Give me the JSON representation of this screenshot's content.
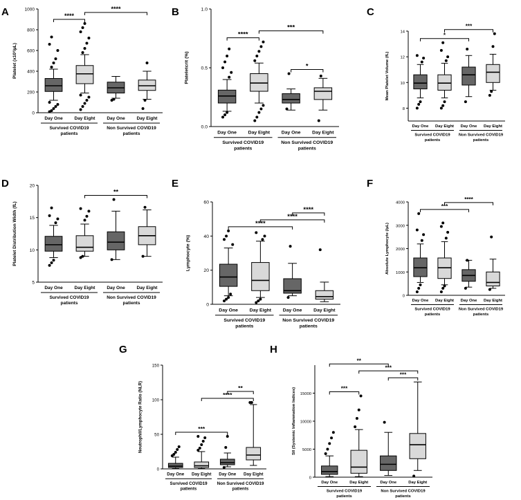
{
  "colors": {
    "dark": "#666666",
    "light": "#d9d9d9",
    "ink": "#000000"
  },
  "chart_data": [
    {
      "panel": "A",
      "type": "box",
      "ylabel": "Platelet (x10³/µL)",
      "ylim": [
        0,
        1000
      ],
      "yticks": [
        0,
        200,
        400,
        600,
        800,
        1000
      ],
      "xticks": [
        "Day One",
        "Day Eight",
        "Day One",
        "Day Eight"
      ],
      "groups": [
        "Survived COVID19 patients",
        "Non Survived COVID19 patients"
      ],
      "boxes": [
        {
          "min": 120,
          "q1": 205,
          "median": 260,
          "q3": 330,
          "max": 420,
          "outliers": [
            10,
            20,
            40,
            60,
            80,
            100,
            440,
            480,
            520,
            600,
            660,
            730
          ],
          "fill": "dark"
        },
        {
          "min": 190,
          "q1": 280,
          "median": 375,
          "q3": 455,
          "max": 560,
          "outliers": [
            30,
            60,
            90,
            120,
            150,
            170,
            580,
            620,
            670,
            720,
            780,
            820,
            860
          ],
          "fill": "light"
        },
        {
          "min": 140,
          "q1": 190,
          "median": 240,
          "q3": 295,
          "max": 350,
          "outliers": [
            120,
            130
          ],
          "fill": "dark"
        },
        {
          "min": 130,
          "q1": 215,
          "median": 260,
          "q3": 315,
          "max": 400,
          "outliers": [
            40,
            120,
            480
          ],
          "fill": "light"
        }
      ],
      "brackets": [
        {
          "from": 0,
          "to": 1,
          "label": "****"
        },
        {
          "from": 1,
          "to": 3,
          "label": "****"
        }
      ]
    },
    {
      "panel": "B",
      "type": "box",
      "ylabel": "Plateletcrit (%)",
      "ylim": [
        0,
        1
      ],
      "yticks": [
        "0.0",
        "0.5",
        "1.0"
      ],
      "xticks": [
        "Day One",
        "Day Eight",
        "Day One",
        "Day Eight"
      ],
      "groups": [
        "Survived COVID19 patients",
        "Non Survived COVID19 patients"
      ],
      "boxes": [
        {
          "min": 0.13,
          "q1": 0.2,
          "median": 0.26,
          "q3": 0.31,
          "max": 0.4,
          "outliers": [
            0.08,
            0.1,
            0.12,
            0.42,
            0.46,
            0.5,
            0.55,
            0.6,
            0.66
          ],
          "fill": "dark"
        },
        {
          "min": 0.2,
          "q1": 0.3,
          "median": 0.37,
          "q3": 0.45,
          "max": 0.54,
          "outliers": [
            0.05,
            0.08,
            0.12,
            0.15,
            0.18,
            0.56,
            0.6,
            0.64,
            0.68,
            0.72
          ],
          "fill": "light"
        },
        {
          "min": 0.14,
          "q1": 0.2,
          "median": 0.23,
          "q3": 0.28,
          "max": 0.32,
          "outliers": [
            0.15,
            0.45
          ],
          "fill": "dark"
        },
        {
          "min": 0.14,
          "q1": 0.23,
          "median": 0.3,
          "q3": 0.33,
          "max": 0.41,
          "outliers": [
            0.05,
            0.43
          ],
          "fill": "light"
        }
      ],
      "brackets": [
        {
          "from": 0,
          "to": 1,
          "label": "****"
        },
        {
          "from": 2,
          "to": 3,
          "label": "*"
        },
        {
          "from": 1,
          "to": 3,
          "label": "***"
        }
      ]
    },
    {
      "panel": "C",
      "type": "box",
      "ylabel": "Mean Platelet Volume (fL)",
      "ylim": [
        7,
        14
      ],
      "yticks": [
        8,
        10,
        12,
        14
      ],
      "xticks": [
        "Day One",
        "Day Eight",
        "Day One",
        "Day Eight"
      ],
      "groups": [
        "Survived COVID19 patients",
        "Non Survived COVID19 patients"
      ],
      "boxes": [
        {
          "min": 8.8,
          "q1": 9.5,
          "median": 9.95,
          "q3": 10.6,
          "max": 11.4,
          "outliers": [
            8.0,
            8.3,
            8.5,
            11.6,
            11.9,
            12.1
          ],
          "fill": "dark"
        },
        {
          "min": 8.8,
          "q1": 9.4,
          "median": 9.95,
          "q3": 10.6,
          "max": 11.5,
          "outliers": [
            8.0,
            8.2,
            8.5,
            11.7,
            12.0,
            12.5,
            13.1
          ],
          "fill": "light"
        },
        {
          "min": 8.9,
          "q1": 9.8,
          "median": 10.6,
          "q3": 11.2,
          "max": 12.1,
          "outliers": [
            8.5,
            12.6
          ],
          "fill": "dark"
        },
        {
          "min": 9.4,
          "q1": 10.0,
          "median": 10.8,
          "q3": 11.4,
          "max": 12.2,
          "outliers": [
            9.0,
            9.3,
            12.8,
            13.8
          ],
          "fill": "light"
        }
      ],
      "brackets": [
        {
          "from": 0,
          "to": 2,
          "label": "*"
        },
        {
          "from": 1,
          "to": 3,
          "label": "***"
        }
      ]
    },
    {
      "panel": "D",
      "type": "box",
      "ylabel": "Platelet Distribution Width (fL)",
      "ylim": [
        5,
        20
      ],
      "yticks": [
        5,
        10,
        15,
        20
      ],
      "xticks": [
        "Day One",
        "Day Eight",
        "Day One",
        "Day Eight"
      ],
      "groups": [
        "Survived COVID19 patients",
        "Non Survived COVID19 patients"
      ],
      "boxes": [
        {
          "min": 8.8,
          "q1": 9.8,
          "median": 10.8,
          "q3": 12.1,
          "max": 13.8,
          "outliers": [
            7.6,
            8.0,
            8.4,
            14.2,
            14.8,
            15.3,
            16.5
          ],
          "fill": "dark"
        },
        {
          "min": 9.0,
          "q1": 9.8,
          "median": 10.4,
          "q3": 12.2,
          "max": 14.0,
          "outliers": [
            8.8,
            9.0,
            14.6,
            15.2,
            16.0,
            16.4
          ],
          "fill": "light"
        },
        {
          "min": 8.5,
          "q1": 10.0,
          "median": 11.2,
          "q3": 12.8,
          "max": 16.0,
          "outliers": [
            8.5,
            17.8
          ],
          "fill": "dark"
        },
        {
          "min": 9.0,
          "q1": 10.8,
          "median": 12.2,
          "q3": 13.6,
          "max": 16.2,
          "outliers": [
            9.0,
            16.6
          ],
          "fill": "light"
        }
      ],
      "brackets": [
        {
          "from": 1,
          "to": 3,
          "label": "**"
        }
      ]
    },
    {
      "panel": "E",
      "type": "box",
      "ylabel": "Lymphocyte (%)",
      "ylim": [
        0,
        60
      ],
      "yticks": [
        0,
        20,
        40,
        60
      ],
      "xticks": [
        "Day One",
        "Day Eight",
        "Day One",
        "Day Eight"
      ],
      "groups": [
        "Survived COVID19 patients",
        "Non Survived COVID19 patients"
      ],
      "boxes": [
        {
          "min": 5,
          "q1": 10.5,
          "median": 16,
          "q3": 23.5,
          "max": 33,
          "outliers": [
            2,
            3,
            4,
            6,
            35,
            38,
            40,
            43
          ],
          "fill": "dark"
        },
        {
          "min": 4,
          "q1": 8,
          "median": 14,
          "q3": 24.5,
          "max": 37,
          "outliers": [
            1,
            2,
            3,
            38,
            40,
            42
          ],
          "fill": "light"
        },
        {
          "min": 5,
          "q1": 6.5,
          "median": 8,
          "q3": 15,
          "max": 24,
          "outliers": [
            4,
            34
          ],
          "fill": "dark"
        },
        {
          "min": 1.5,
          "q1": 3,
          "median": 4.5,
          "q3": 8,
          "max": 13,
          "outliers": [
            32
          ],
          "fill": "light"
        }
      ],
      "brackets": [
        {
          "from": 0,
          "to": 2,
          "label": "****"
        },
        {
          "from": 1,
          "to": 3,
          "label": "****"
        },
        {
          "from": 2,
          "to": 3,
          "label": "****"
        }
      ]
    },
    {
      "panel": "F",
      "type": "box",
      "ylabel": "Absolute Lymphocyte (/µL)",
      "ylim": [
        0,
        4000
      ],
      "yticks": [
        0,
        1000,
        2000,
        3000,
        4000
      ],
      "xticks": [
        "Day One",
        "Day Eight",
        "Day One",
        "Day Eight"
      ],
      "groups": [
        "Survived COVID19 patients",
        "Non Survived COVID19 patients"
      ],
      "boxes": [
        {
          "min": 550,
          "q1": 800,
          "median": 1180,
          "q3": 1600,
          "max": 2200,
          "outliers": [
            150,
            300,
            450,
            2350,
            2600,
            2800,
            3500
          ],
          "fill": "dark"
        },
        {
          "min": 450,
          "q1": 720,
          "median": 1180,
          "q3": 1600,
          "max": 2300,
          "outliers": [
            150,
            300,
            400,
            2450,
            2700,
            2950,
            3100
          ],
          "fill": "light"
        },
        {
          "min": 350,
          "q1": 600,
          "median": 850,
          "q3": 1100,
          "max": 1500,
          "outliers": [
            300,
            1500
          ],
          "fill": "dark"
        },
        {
          "min": 300,
          "q1": 400,
          "median": 550,
          "q3": 1000,
          "max": 1550,
          "outliers": [
            250,
            2500
          ],
          "fill": "light"
        }
      ],
      "brackets": [
        {
          "from": 0,
          "to": 2,
          "label": "***"
        },
        {
          "from": 1,
          "to": 3,
          "label": "****"
        }
      ]
    },
    {
      "panel": "G",
      "type": "box",
      "ylabel": "Neutrophil/Lymphocyte Ratio (NLR)",
      "ylim": [
        0,
        150
      ],
      "yticks": [
        0,
        50,
        100,
        150
      ],
      "xticks": [
        "Day One",
        "Day Eight",
        "Day One",
        "Day Eight"
      ],
      "groups": [
        "Survived COVID19 patients",
        "Non Survived COVID19 patients"
      ],
      "boxes": [
        {
          "min": 0.5,
          "q1": 2,
          "median": 4,
          "q3": 8,
          "max": 17,
          "outliers": [
            19,
            21,
            24,
            28,
            32
          ],
          "fill": "dark"
        },
        {
          "min": 0.5,
          "q1": 2,
          "median": 4.5,
          "q3": 10,
          "max": 25,
          "outliers": [
            27,
            30,
            35,
            40,
            45,
            47
          ],
          "fill": "light"
        },
        {
          "min": 3,
          "q1": 6,
          "median": 9,
          "q3": 14,
          "max": 23,
          "outliers": [
            2,
            31,
            47
          ],
          "fill": "dark"
        },
        {
          "min": 5,
          "q1": 13,
          "median": 20,
          "q3": 31,
          "max": 93,
          "outliers": [
            96,
            96
          ],
          "fill": "light"
        }
      ],
      "brackets": [
        {
          "from": 0,
          "to": 2,
          "label": "***"
        },
        {
          "from": 1,
          "to": 3,
          "label": "****"
        },
        {
          "from": 2,
          "to": 3,
          "label": "**"
        }
      ]
    },
    {
      "panel": "H",
      "type": "box",
      "ylabel": "SII (Systemic Inflammation Indices)",
      "ylim": [
        0,
        20000
      ],
      "yticks": [
        0,
        5000,
        10000,
        15000
      ],
      "xticks": [
        "Day One",
        "Day Eight",
        "Day One",
        "Day Eight"
      ],
      "groups": [
        "Survived COVID19 patients",
        "Non Survived COVID19 patients"
      ],
      "boxes": [
        {
          "min": 100,
          "q1": 500,
          "median": 1000,
          "q3": 2000,
          "max": 3800,
          "outliers": [
            4200,
            5000,
            6000,
            7000,
            8000
          ],
          "fill": "dark"
        },
        {
          "min": 100,
          "q1": 700,
          "median": 1800,
          "q3": 4800,
          "max": 8500,
          "outliers": [
            9000,
            10500,
            12000,
            14500
          ],
          "fill": "light"
        },
        {
          "min": 300,
          "q1": 1200,
          "median": 2300,
          "q3": 3800,
          "max": 8000,
          "outliers": [
            9800
          ],
          "fill": "dark"
        },
        {
          "min": 1200,
          "q1": 3300,
          "median": 5800,
          "q3": 7800,
          "max": 17000,
          "outliers": [
            200
          ],
          "fill": "light"
        }
      ],
      "brackets": [
        {
          "from": 0,
          "to": 1,
          "label": "***"
        },
        {
          "from": 2,
          "to": 3,
          "label": "***"
        },
        {
          "from": 1,
          "to": 3,
          "label": "***"
        },
        {
          "from": 0,
          "to": 2,
          "label": "**"
        }
      ]
    }
  ]
}
